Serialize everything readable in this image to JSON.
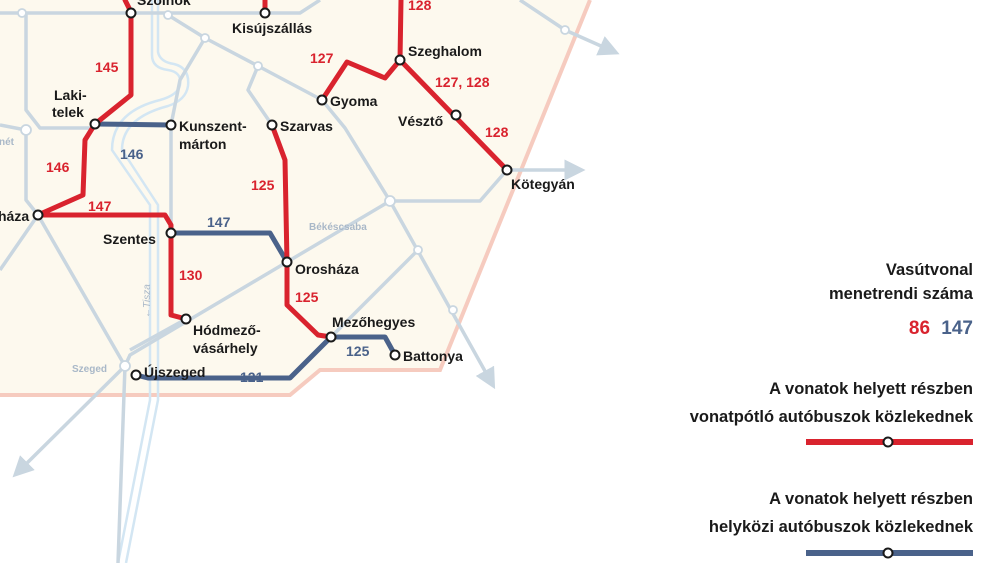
{
  "colors": {
    "rail_replacement": "#d9232e",
    "intercity_bus": "#4a628a",
    "inactive_line": "#c9d6e0",
    "map_background": "#fdf9ee",
    "border": "#f6cbbf"
  },
  "stations": {
    "szolnok": "Szolnok",
    "kisujszallas": "Kisújszállás",
    "szeghalom": "Szeghalom",
    "gyoma": "Gyoma",
    "veszto": "Vésztő",
    "kotegyan": "Kötegyán",
    "lakitelek_1": "Laki-",
    "lakitelek_2": "telek",
    "kunszentmarton_1": "Kunszent-",
    "kunszentmarton_2": "márton",
    "szarvas": "Szarvas",
    "csongrad_partial": "háza",
    "szentes": "Szentes",
    "oroshaza": "Orosháza",
    "hodmezo_1": "Hódmező-",
    "hodmezo_2": "vásárhely",
    "mezohegyes": "Mezőhegyes",
    "battonya": "Battonya",
    "ujszeged": "Újszeged"
  },
  "grey_stations": {
    "bekescsaba": "Békéscsaba",
    "szeged": "Szeged",
    "kecskemet_partial": "nét"
  },
  "river": "←Tisza",
  "line_numbers": {
    "n145": "145",
    "n146_red": "146",
    "n146_blue": "146",
    "n147_red": "147",
    "n147_blue": "147",
    "n130": "130",
    "n125_a": "125",
    "n125_b": "125",
    "n125_blue": "125",
    "n121": "121",
    "n127": "127",
    "n127_128": "127, 128",
    "n128_top": "128",
    "n128": "128"
  },
  "legend": {
    "title_1": "Vasútvonal",
    "title_2": "menetrendi száma",
    "sample_red": "86",
    "sample_blue": "147",
    "replacement_1": "A vonatok helyett részben",
    "replacement_2": "vonatpótló autóbuszok közlekednek",
    "intercity_1": "A vonatok helyett részben",
    "intercity_2": "helyközi autóbuszok közlekednek"
  }
}
